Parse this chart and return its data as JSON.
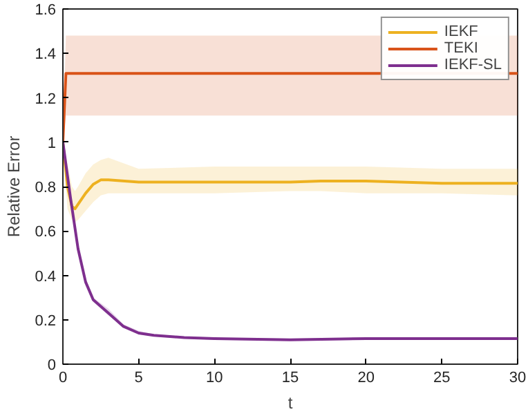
{
  "chart_data": {
    "type": "line",
    "xlabel": "t",
    "ylabel": "Relative Error",
    "xlim": [
      0,
      30
    ],
    "ylim": [
      0,
      1.6
    ],
    "xticks": [
      0,
      5,
      10,
      15,
      20,
      25,
      30
    ],
    "yticks": [
      0,
      0.2,
      0.4,
      0.6,
      0.8,
      1,
      1.2,
      1.4,
      1.6
    ],
    "grid": false,
    "legend": "top right",
    "series": [
      {
        "name": "IEKF",
        "color": "#edb120",
        "x": [
          0,
          0.3,
          0.6,
          0.8,
          1,
          1.5,
          2,
          2.5,
          3,
          5,
          10,
          15,
          17,
          20,
          25,
          30
        ],
        "values": [
          1,
          0.8,
          0.71,
          0.7,
          0.72,
          0.77,
          0.81,
          0.83,
          0.83,
          0.82,
          0.82,
          0.82,
          0.825,
          0.825,
          0.815,
          0.815
        ],
        "lower": [
          1,
          0.7,
          0.65,
          0.64,
          0.65,
          0.69,
          0.73,
          0.76,
          0.77,
          0.77,
          0.77,
          0.78,
          0.78,
          0.77,
          0.77,
          0.76
        ],
        "upper": [
          1,
          0.9,
          0.8,
          0.78,
          0.8,
          0.86,
          0.9,
          0.92,
          0.93,
          0.88,
          0.89,
          0.89,
          0.89,
          0.89,
          0.88,
          0.88
        ]
      },
      {
        "name": "TEKI",
        "color": "#d95319",
        "x": [
          0,
          0.2,
          30
        ],
        "values": [
          1,
          1.31,
          1.31
        ],
        "lower": [
          1,
          1.12,
          1.12
        ],
        "upper": [
          1,
          1.48,
          1.48
        ]
      },
      {
        "name": "IEKF-SL",
        "color": "#7e2f8e",
        "x": [
          0,
          0.5,
          1,
          1.5,
          2,
          3,
          4,
          5,
          6,
          8,
          10,
          15,
          20,
          25,
          30
        ],
        "values": [
          1,
          0.75,
          0.52,
          0.37,
          0.29,
          0.23,
          0.17,
          0.14,
          0.13,
          0.12,
          0.115,
          0.11,
          0.115,
          0.115,
          0.115
        ],
        "lower": [
          1,
          0.74,
          0.51,
          0.36,
          0.28,
          0.22,
          0.165,
          0.135,
          0.125,
          0.115,
          0.11,
          0.105,
          0.11,
          0.11,
          0.11
        ],
        "upper": [
          1,
          0.76,
          0.53,
          0.38,
          0.3,
          0.25,
          0.18,
          0.15,
          0.135,
          0.125,
          0.12,
          0.115,
          0.12,
          0.12,
          0.12
        ]
      }
    ]
  }
}
